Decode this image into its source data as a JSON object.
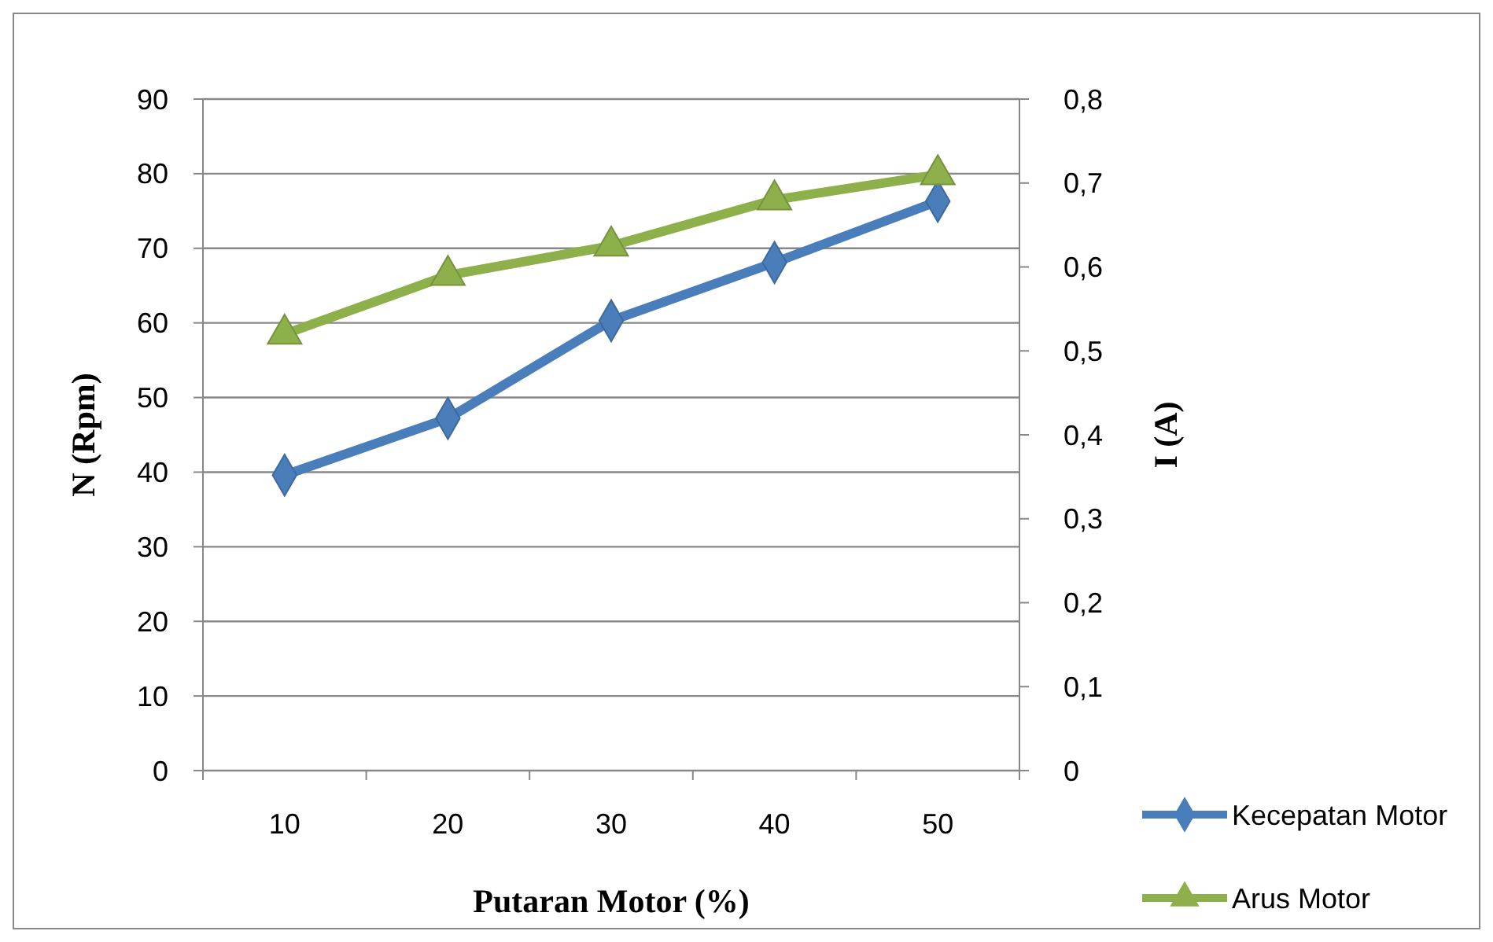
{
  "chart_data": {
    "type": "line",
    "xlabel": "Putaran Motor (%)",
    "ylabel": "N (Rpm)",
    "y2label": "I (A)",
    "categories": [
      "10",
      "20",
      "30",
      "40",
      "50"
    ],
    "series": [
      {
        "name": "Kecepatan Motor",
        "color": "#4a7ebb",
        "values": [
          39.6,
          47.2,
          60.3,
          68.1,
          76.3
        ],
        "marker": "diamond"
      },
      {
        "name": "Arus Motor",
        "color": "#8db04a",
        "values": [
          0.52,
          0.59,
          0.625,
          0.68,
          0.71
        ],
        "marker": "triangle",
        "axis": "y2"
      }
    ],
    "ylim": [
      0,
      90
    ],
    "yticks": [
      0,
      10,
      20,
      30,
      40,
      50,
      60,
      70,
      80,
      90
    ],
    "y2lim": [
      0,
      0.8
    ],
    "y2ticks": [
      {
        "value": 0,
        "label": "0"
      },
      {
        "value": 0.1,
        "label": "0,1"
      },
      {
        "value": 0.2,
        "label": "0,2"
      },
      {
        "value": 0.3,
        "label": "0,3"
      },
      {
        "value": 0.4,
        "label": "0,4"
      },
      {
        "value": 0.5,
        "label": "0,5"
      },
      {
        "value": 0.6,
        "label": "0,6"
      },
      {
        "value": 0.7,
        "label": "0,7"
      },
      {
        "value": 0.8,
        "label": "0,8"
      }
    ],
    "grid": "y",
    "legend": "right",
    "line_style": "solid"
  }
}
